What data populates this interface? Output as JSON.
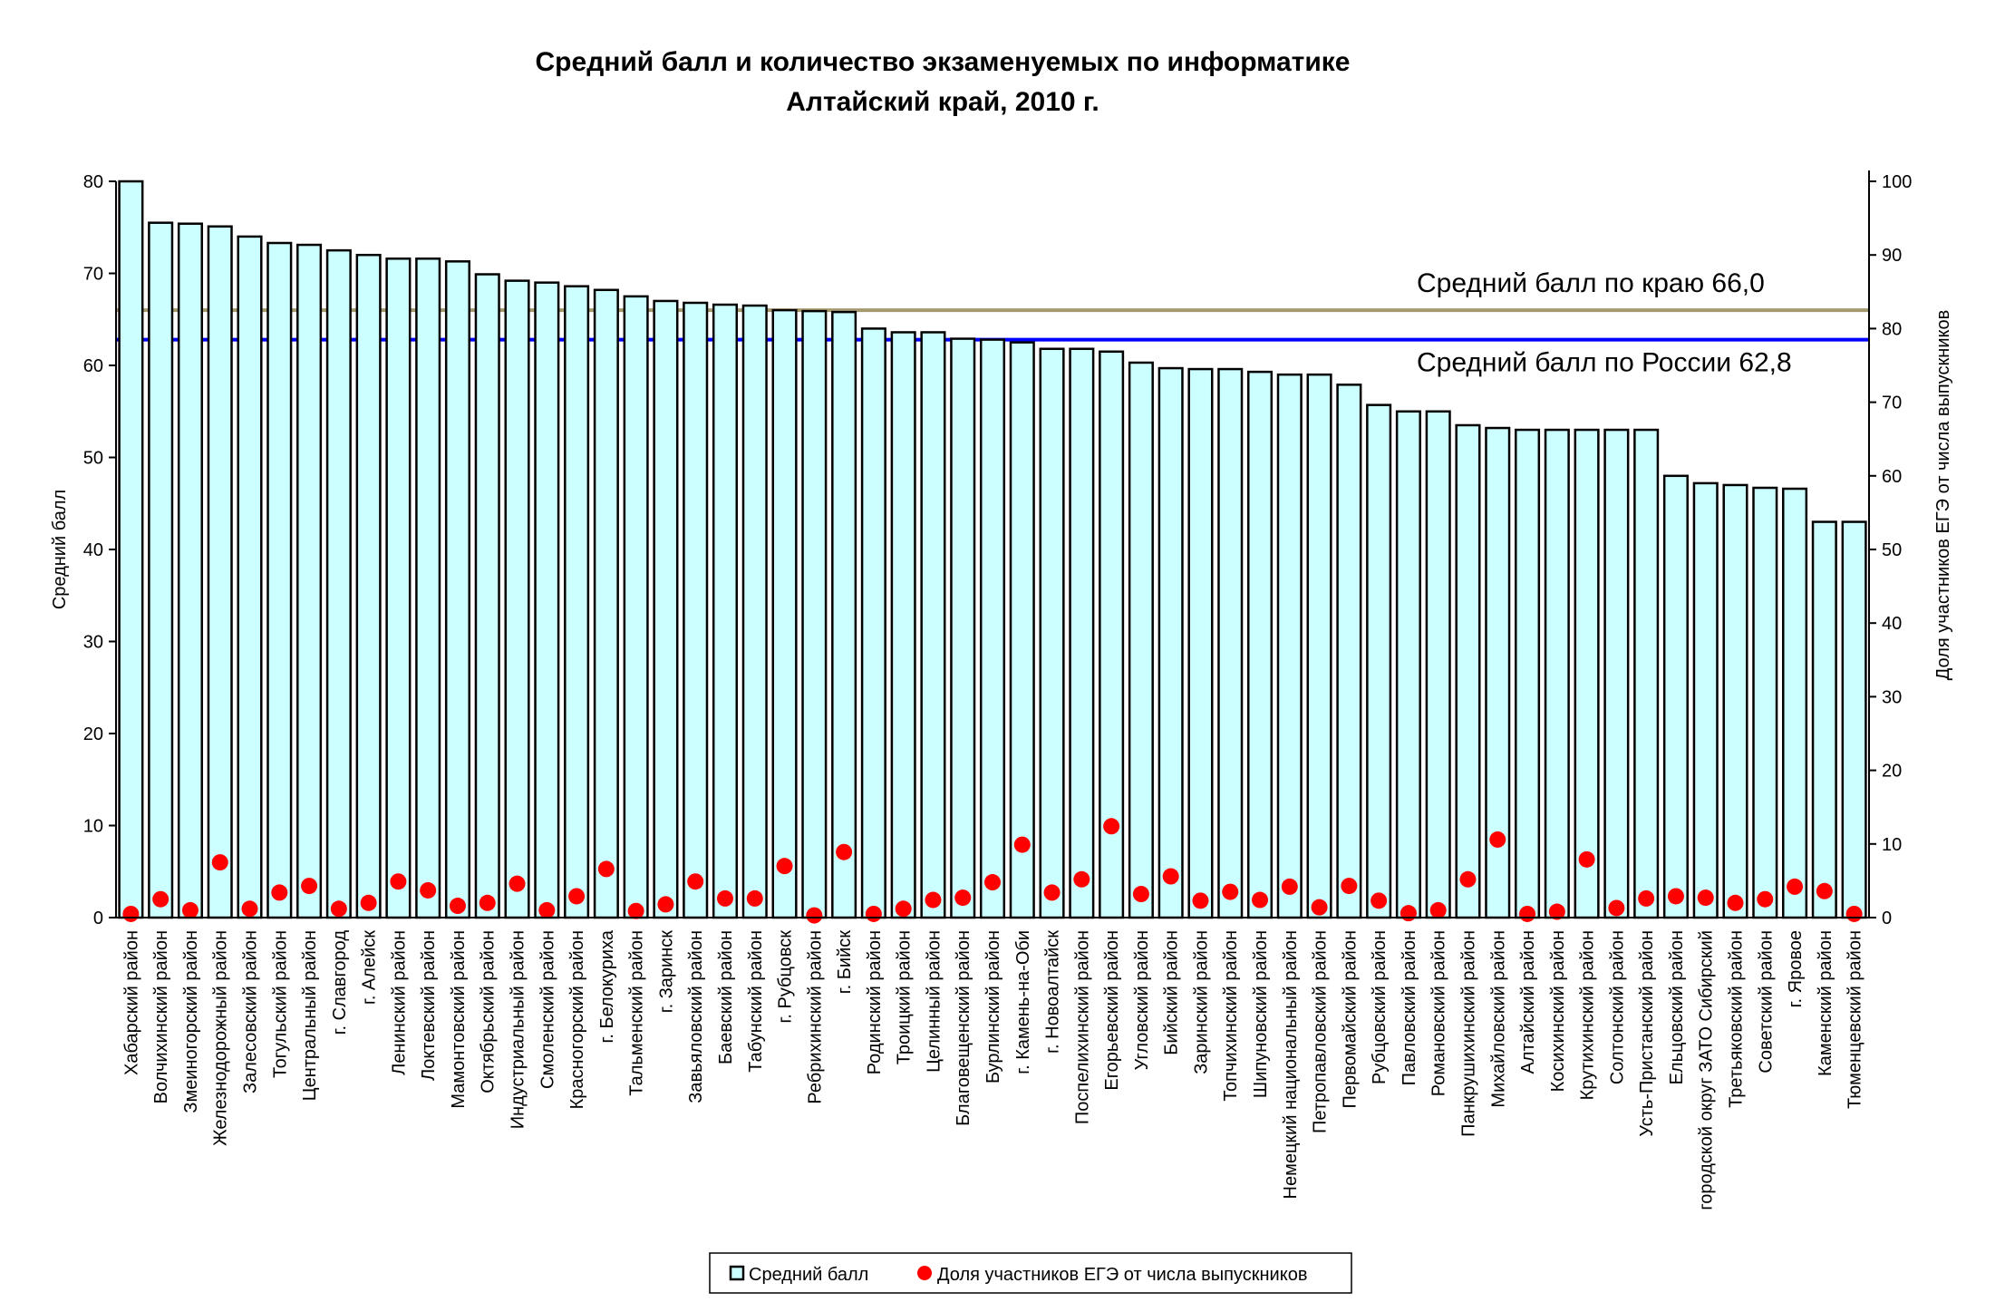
{
  "chart_data": {
    "type": "bar",
    "title": [
      "Средний балл и количество экзаменуемых по информатике",
      "Алтайский край, 2010 г."
    ],
    "ylabel": "Средний балл",
    "y2label": "Доля участников ЕГЭ от числа выпускников",
    "ylim": [
      0,
      80
    ],
    "y2lim": [
      0,
      100
    ],
    "yticks": [
      0,
      10,
      20,
      30,
      40,
      50,
      60,
      70,
      80
    ],
    "y2ticks": [
      0,
      10,
      20,
      30,
      40,
      50,
      60,
      70,
      80,
      90,
      100
    ],
    "grid": false,
    "legend_position": "bottom",
    "categories": [
      "Хабарский район",
      "Волчихинский район",
      "Змеиногорский район",
      "Железнодорожный район",
      "Залесовский район",
      "Тогульский район",
      "Центральный район",
      "г. Славгород",
      "г. Алейск",
      "Ленинский район",
      "Локтевский район",
      "Мамонтовский район",
      "Октябрьский район",
      "Индустриальный район",
      "Смоленский район",
      "Красногорский район",
      "г. Белокуриха",
      "Тальменский район",
      "г. Заринск",
      "Завьяловский район",
      "Баевский район",
      "Табунский район",
      "г. Рубцовск",
      "Ребрихинский район",
      "г. Бийск",
      "Родинский район",
      "Троицкий район",
      "Целинный район",
      "Благовещенский район",
      "Бурлинский район",
      "г. Камень-на-Оби",
      "г. Новоалтайск",
      "Поспелихинский район",
      "Егорьевский район",
      "Угловский район",
      "Бийский район",
      "Заринский район",
      "Топчихинский район",
      "Шипуновский район",
      "Немецкий национальный район",
      "Петропавловский район",
      "Первомайский район",
      "Рубцовский район",
      "Павловский район",
      "Романовский район",
      "Панкрушихинский район",
      "Михайловский район",
      "Алтайский район",
      "Косихинский район",
      "Крутихинский район",
      "Солтонский район",
      "Усть-Пристанский район",
      "Ельцовский район",
      "городской округ ЗАТО Сибирский",
      "Третьяковский район",
      "Советский район",
      "г. Яровое",
      "Каменский район",
      "Тюменцевский район"
    ],
    "series": [
      {
        "name": "Средний балл",
        "type": "bar",
        "axis": "left",
        "color": "#ccffff",
        "values": [
          80.0,
          75.5,
          75.4,
          75.1,
          74.0,
          73.3,
          73.1,
          72.5,
          72.0,
          71.6,
          71.6,
          71.3,
          69.9,
          69.2,
          69.0,
          68.6,
          68.2,
          67.5,
          67.0,
          66.8,
          66.6,
          66.5,
          66.0,
          65.9,
          65.8,
          64.0,
          63.6,
          63.6,
          62.9,
          62.8,
          62.5,
          61.8,
          61.8,
          61.5,
          60.3,
          59.7,
          59.6,
          59.6,
          59.3,
          59.0,
          59.0,
          57.9,
          55.7,
          55.0,
          55.0,
          53.5,
          53.2,
          53.0,
          53.0,
          53.0,
          53.0,
          53.0,
          48.0,
          47.2,
          47.0,
          46.7,
          46.6,
          43.0,
          43.0
        ]
      },
      {
        "name": "Доля участников ЕГЭ от числа выпускников",
        "type": "scatter",
        "axis": "right",
        "color": "#ff0000",
        "values": [
          0.5,
          2.5,
          1.0,
          7.5,
          1.2,
          3.4,
          4.3,
          1.2,
          2.0,
          4.9,
          3.7,
          1.6,
          2.0,
          4.6,
          1.0,
          2.9,
          6.6,
          0.9,
          1.8,
          4.9,
          2.6,
          2.6,
          7.0,
          0.3,
          8.9,
          0.5,
          1.2,
          2.4,
          2.7,
          4.8,
          9.9,
          3.4,
          5.2,
          12.4,
          3.2,
          5.6,
          2.3,
          3.5,
          2.4,
          4.2,
          1.4,
          4.3,
          2.3,
          0.6,
          1.0,
          5.2,
          10.6,
          0.5,
          0.8,
          7.9,
          1.3,
          2.6,
          2.9,
          2.7,
          2.0,
          2.5,
          4.2,
          3.6,
          0.5
        ]
      }
    ],
    "reference_lines": [
      {
        "label": "Средний балл по краю 66,0",
        "value": 66.0,
        "color": "#a59a6e"
      },
      {
        "label": "Средний балл по России 62,8",
        "value": 62.8,
        "color": "#0000ff"
      }
    ]
  }
}
